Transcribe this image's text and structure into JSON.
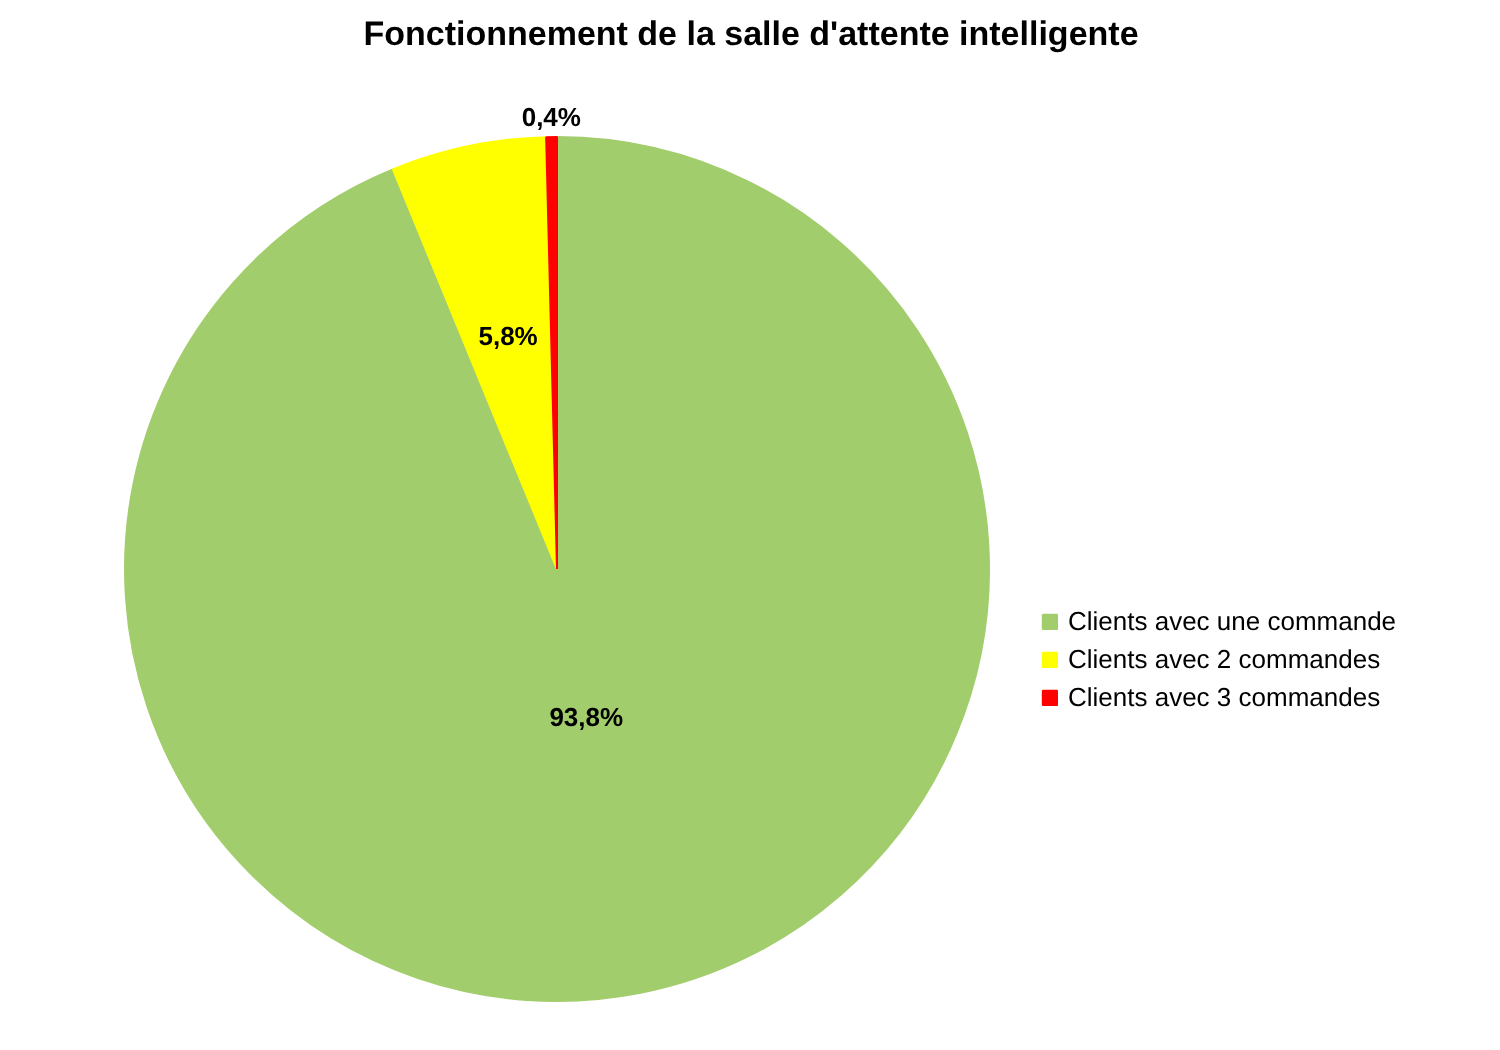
{
  "chart_data": {
    "type": "pie",
    "title": "Fonctionnement de la salle d'attente intelligente",
    "categories": [
      "Clients avec une commande",
      "Clients avec 2 commandes",
      "Clients avec 3 commandes"
    ],
    "values": [
      93.8,
      5.8,
      0.4
    ],
    "colors": [
      "#a2cd6c",
      "#ffff00",
      "#ff0000"
    ],
    "value_labels": [
      "93,8%",
      "5,8%",
      "0,4%"
    ],
    "legend": "right"
  }
}
